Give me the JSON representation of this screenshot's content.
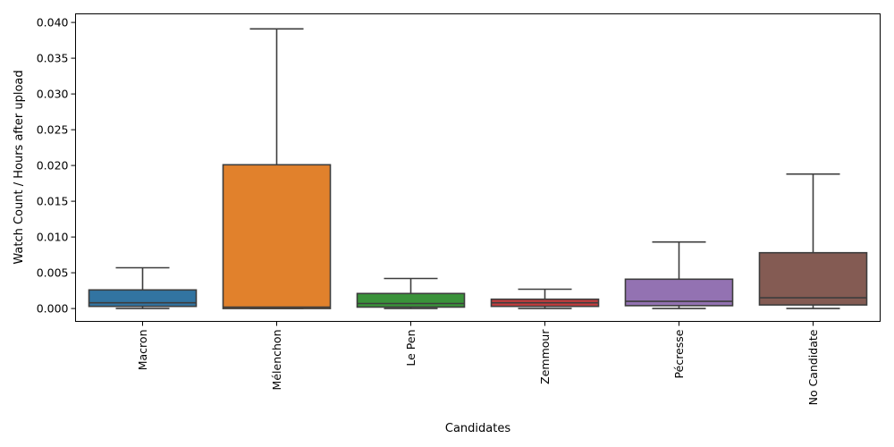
{
  "chart_data": {
    "type": "box",
    "title": "",
    "xlabel": "Candidates",
    "ylabel": "Watch Count / Hours after upload",
    "ylim": [
      -0.0018,
      0.0412
    ],
    "yticks": [
      0.0,
      0.005,
      0.01,
      0.015,
      0.02,
      0.025,
      0.03,
      0.035,
      0.04
    ],
    "ytick_labels": [
      "0.000",
      "0.005",
      "0.010",
      "0.015",
      "0.020",
      "0.025",
      "0.030",
      "0.035",
      "0.040"
    ],
    "grid": false,
    "legend": "none",
    "categories": [
      "Macron",
      "Mélenchon",
      "Le Pen",
      "Zemmour",
      "Pécresse",
      "No Candidate"
    ],
    "boxes": [
      {
        "category": "Macron",
        "color": "#3274a1",
        "whisker_low": 0.0,
        "q1": 0.0003,
        "median": 0.0008,
        "q3": 0.0026,
        "whisker_high": 0.0057
      },
      {
        "category": "Mélenchon",
        "color": "#e1812c",
        "whisker_low": 0.0,
        "q1": 0.0,
        "median": 0.0002,
        "q3": 0.0201,
        "whisker_high": 0.0391
      },
      {
        "category": "Le Pen",
        "color": "#3a923a",
        "whisker_low": 0.0,
        "q1": 0.0002,
        "median": 0.0007,
        "q3": 0.0021,
        "whisker_high": 0.0042
      },
      {
        "category": "Zemmour",
        "color": "#c03d3e",
        "whisker_low": 0.0,
        "q1": 0.0003,
        "median": 0.0008,
        "q3": 0.0013,
        "whisker_high": 0.0027
      },
      {
        "category": "Pécresse",
        "color": "#9372b2",
        "whisker_low": 0.0,
        "q1": 0.0004,
        "median": 0.001,
        "q3": 0.0041,
        "whisker_high": 0.0093
      },
      {
        "category": "No Candidate",
        "color": "#845b53",
        "whisker_low": 0.0,
        "q1": 0.0005,
        "median": 0.0015,
        "q3": 0.0078,
        "whisker_high": 0.0188
      }
    ]
  }
}
